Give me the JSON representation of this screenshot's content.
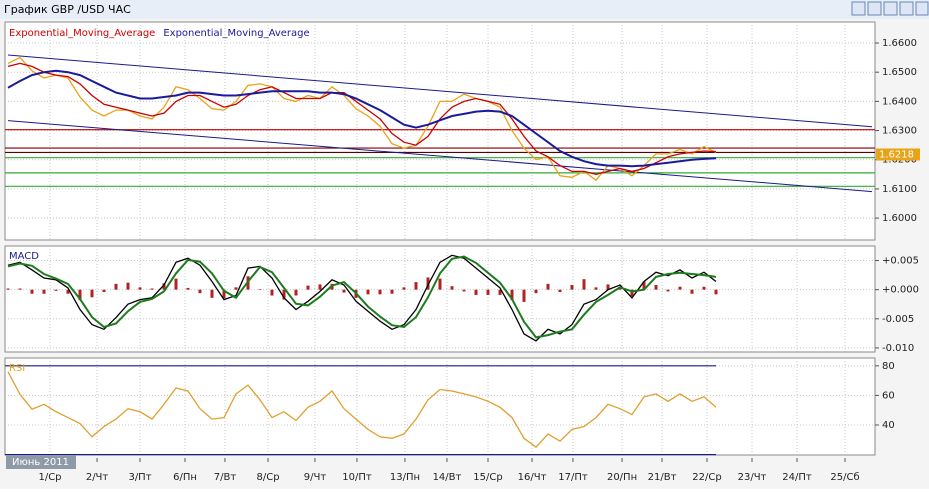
{
  "window_title": "График GBP /USD  ЧАС",
  "time_axis": {
    "x": [
      0,
      1,
      2,
      3,
      4,
      5,
      6,
      7,
      8,
      9,
      10,
      11,
      12,
      13,
      14,
      15,
      16,
      17,
      18,
      19,
      20,
      21,
      22,
      23,
      24,
      25,
      26,
      27,
      28,
      29,
      30,
      31,
      32,
      33,
      34,
      35,
      36,
      37,
      38,
      39,
      40,
      41,
      42,
      43,
      44,
      45,
      46,
      47,
      48,
      49,
      50,
      51,
      52,
      53,
      54,
      55,
      56,
      57,
      58,
      59
    ],
    "xlim": [
      0,
      72
    ],
    "xticks": [
      {
        "value": 3.5,
        "label": "1/Ср"
      },
      {
        "value": 7.42,
        "label": "2/Чт"
      },
      {
        "value": 11,
        "label": "3/Пт"
      },
      {
        "value": 14.75,
        "label": "6/Пн"
      },
      {
        "value": 18.08,
        "label": "7/Вт"
      },
      {
        "value": 21.67,
        "label": "8/Ср"
      },
      {
        "value": 25.58,
        "label": "9/Чт"
      },
      {
        "value": 29.08,
        "label": "10/Пт"
      },
      {
        "value": 33.08,
        "label": "13/Пн"
      },
      {
        "value": 36.58,
        "label": "14/Вт"
      },
      {
        "value": 40,
        "label": "15/Ср"
      },
      {
        "value": 43.67,
        "label": "16/Чт"
      },
      {
        "value": 47.08,
        "label": "17/Пт"
      },
      {
        "value": 51.17,
        "label": "20/Пн"
      },
      {
        "value": 54.5,
        "label": "21/Вт"
      },
      {
        "value": 58.25,
        "label": "22/Ср"
      },
      {
        "value": 62,
        "label": "23/Чт"
      },
      {
        "value": 65.75,
        "label": "24/Пт"
      },
      {
        "value": 69.75,
        "label": "25/Сб"
      }
    ],
    "month_label": "Июнь 2011"
  },
  "chart_data": [
    {
      "type": "line",
      "ylim": [
        1.5925,
        1.6672
      ],
      "grid": true,
      "yticks": [
        {
          "value": 1.66,
          "label": "1.6600"
        },
        {
          "value": 1.65,
          "label": "1.6500"
        },
        {
          "value": 1.64,
          "label": "1.6400"
        },
        {
          "value": 1.63,
          "label": "1.6300"
        },
        {
          "value": 1.62,
          "label": "1.6200"
        },
        {
          "value": 1.61,
          "label": "1.6100"
        },
        {
          "value": 1.6,
          "label": "1.6000"
        }
      ],
      "last_price": {
        "value": 1.6218,
        "label": "1.6218"
      },
      "levels": [
        {
          "value": 1.6303,
          "color": "#c00000"
        },
        {
          "value": 1.624,
          "color": "#800000"
        },
        {
          "value": 1.6225,
          "color": "#5a0000"
        },
        {
          "value": 1.6207,
          "color": "#33aa33"
        },
        {
          "value": 1.6155,
          "color": "#33aa33"
        },
        {
          "value": 1.6109,
          "color": "#33aa33"
        }
      ],
      "trend_lines": [
        {
          "x": [
            0,
            72
          ],
          "values": [
            1.6559,
            1.6313
          ],
          "color": "#1a1a8c"
        },
        {
          "x": [
            0,
            72
          ],
          "values": [
            1.6334,
            1.6091
          ],
          "color": "#1a1a8c"
        }
      ],
      "series": [
        {
          "color": "#e8a317",
          "values": [
            1.653,
            1.655,
            1.6505,
            1.648,
            1.649,
            1.648,
            1.6415,
            1.637,
            1.635,
            1.637,
            1.637,
            1.635,
            1.634,
            1.638,
            1.645,
            1.644,
            1.641,
            1.6375,
            1.637,
            1.64,
            1.6455,
            1.646,
            1.645,
            1.641,
            1.64,
            1.642,
            1.641,
            1.645,
            1.642,
            1.6375,
            1.635,
            1.6315,
            1.6255,
            1.624,
            1.625,
            1.6315,
            1.64,
            1.64,
            1.6425,
            1.641,
            1.64,
            1.638,
            1.63,
            1.624,
            1.62,
            1.621,
            1.6145,
            1.614,
            1.616,
            1.613,
            1.618,
            1.617,
            1.6145,
            1.618,
            1.622,
            1.622,
            1.6235,
            1.622,
            1.6245,
            1.6225
          ]
        },
        {
          "name": "Exponential_Moving_Average",
          "color": "#cc0000",
          "values": [
            1.652,
            1.653,
            1.652,
            1.65,
            1.649,
            1.6485,
            1.646,
            1.642,
            1.639,
            1.638,
            1.637,
            1.636,
            1.635,
            1.636,
            1.64,
            1.642,
            1.642,
            1.64,
            1.638,
            1.639,
            1.642,
            1.644,
            1.645,
            1.643,
            1.641,
            1.641,
            1.641,
            1.643,
            1.643,
            1.64,
            1.637,
            1.634,
            1.629,
            1.626,
            1.625,
            1.628,
            1.634,
            1.638,
            1.64,
            1.641,
            1.64,
            1.639,
            1.634,
            1.628,
            1.623,
            1.621,
            1.618,
            1.616,
            1.616,
            1.615,
            1.616,
            1.617,
            1.616,
            1.617,
            1.619,
            1.621,
            1.622,
            1.6225,
            1.623,
            1.6228
          ]
        },
        {
          "name": "Exponential_Moving_Average",
          "color": "#1a1a9c",
          "values": [
            1.6447,
            1.647,
            1.649,
            1.65,
            1.6505,
            1.65,
            1.649,
            1.647,
            1.645,
            1.643,
            1.642,
            1.641,
            1.641,
            1.6415,
            1.642,
            1.643,
            1.643,
            1.6425,
            1.642,
            1.642,
            1.6425,
            1.643,
            1.6435,
            1.6435,
            1.6435,
            1.6435,
            1.643,
            1.643,
            1.6425,
            1.641,
            1.639,
            1.637,
            1.6345,
            1.632,
            1.631,
            1.632,
            1.6335,
            1.635,
            1.6357,
            1.6365,
            1.6368,
            1.6365,
            1.635,
            1.632,
            1.629,
            1.626,
            1.623,
            1.621,
            1.6195,
            1.6185,
            1.618,
            1.618,
            1.6178,
            1.618,
            1.6185,
            1.619,
            1.6195,
            1.62,
            1.6203,
            1.6205
          ]
        }
      ]
    },
    {
      "type": "macd",
      "title": "MACD",
      "ylim": [
        -0.0107,
        0.0075
      ],
      "grid": true,
      "yticks": [
        {
          "value": 0.005,
          "label": "+0.005"
        },
        {
          "value": 0,
          "label": "+0.000"
        },
        {
          "value": -0.005,
          "label": "-0.005"
        },
        {
          "value": -0.01,
          "label": "-0.010"
        }
      ],
      "histogram": {
        "color": "#b22222",
        "values": [
          0.0002,
          0.0002,
          -0.0007,
          -0.0007,
          -0.0002,
          -0.0007,
          -0.0018,
          -0.0013,
          -0.0004,
          0.001,
          0.0012,
          0.0004,
          0.0002,
          0.0011,
          0.0019,
          0.0003,
          -0.0006,
          -0.0014,
          -0.0015,
          0.0004,
          0.0023,
          0.0001,
          -0.001,
          -0.0017,
          -0.001,
          0.0007,
          0.0009,
          0.001,
          -0.0005,
          -0.0014,
          -0.0008,
          -0.0008,
          -0.0007,
          0.0004,
          0.0013,
          0.0021,
          0.0019,
          0.0006,
          -0.0003,
          -0.0009,
          -0.0009,
          -0.0009,
          -0.0018,
          -0.0021,
          -0.0006,
          0.001,
          -0.0004,
          0.0008,
          0.0018,
          0.0004,
          0.0009,
          0.0004,
          -0.0011,
          0.0014,
          0.0008,
          -0.0003,
          0.0005,
          -0.0007,
          0.0005,
          -0.0008
        ]
      },
      "series": [
        {
          "color": "#000000",
          "values": [
            0.0042,
            0.0047,
            0.0034,
            0.002,
            0.0017,
            0.0003,
            -0.0034,
            -0.006,
            -0.0068,
            -0.0048,
            -0.0025,
            -0.0017,
            -0.0014,
            0.0008,
            0.0047,
            0.0054,
            0.0042,
            0.0014,
            -0.0017,
            -0.001,
            0.0037,
            0.004,
            0.002,
            -0.0014,
            -0.0034,
            -0.002,
            -0.0003,
            0.0017,
            0.0008,
            -0.002,
            -0.0037,
            -0.0054,
            -0.0068,
            -0.006,
            -0.0034,
            0.0008,
            0.0047,
            0.0059,
            0.0054,
            0.0037,
            0.002,
            0.0003,
            -0.0034,
            -0.0076,
            -0.0088,
            -0.0068,
            -0.0076,
            -0.006,
            -0.0025,
            -0.0017,
            0,
            0.0008,
            -0.0014,
            0.0014,
            0.003,
            0.0024,
            0.0034,
            0.002,
            0.003,
            0.0014
          ]
        },
        {
          "color": "#1e7b1e",
          "values": [
            0.004,
            0.0045,
            0.0041,
            0.0027,
            0.0019,
            0.001,
            -0.0016,
            -0.0047,
            -0.0064,
            -0.0058,
            -0.0037,
            -0.0021,
            -0.0016,
            -0.0003,
            0.0028,
            0.0051,
            0.0048,
            0.0028,
            -0.0002,
            -0.0014,
            0.0014,
            0.0039,
            0.003,
            0.0003,
            -0.0024,
            -0.0027,
            -0.0012,
            0.0007,
            0.0013,
            -0.0006,
            -0.0029,
            -0.0046,
            -0.0061,
            -0.0064,
            -0.0047,
            -0.0013,
            0.0028,
            0.0053,
            0.0057,
            0.0046,
            0.0029,
            0.0012,
            -0.0016,
            -0.0055,
            -0.0082,
            -0.0078,
            -0.0072,
            -0.0068,
            -0.0043,
            -0.0021,
            -0.0009,
            0.0004,
            -0.0003,
            0,
            0.0022,
            0.0027,
            0.0029,
            0.0027,
            0.0025,
            0.0022
          ]
        }
      ]
    },
    {
      "type": "line",
      "title": "RSI",
      "title_color": "#e8a317",
      "ylim": [
        19.7,
        85.3
      ],
      "grid": true,
      "yticks": [
        80,
        60,
        40
      ],
      "levels": [
        {
          "value": 80,
          "color": "#1a1a8c"
        },
        {
          "value": 20,
          "color": "#1a1a8c"
        }
      ],
      "series": [
        {
          "color": "#e0a030",
          "values": [
            76,
            60.7,
            50.7,
            54,
            49,
            45,
            41,
            32,
            39,
            44,
            51,
            49,
            44,
            54,
            65,
            63,
            51,
            44,
            45,
            61,
            67,
            57,
            45,
            49,
            43,
            52,
            56,
            63,
            51,
            44,
            37,
            32,
            31,
            34,
            44,
            57,
            64,
            63,
            61,
            59,
            56,
            52,
            45,
            31,
            25,
            34,
            29,
            37,
            39,
            45,
            54,
            51,
            47,
            59,
            61,
            56,
            61,
            56,
            59,
            52
          ]
        }
      ]
    }
  ]
}
